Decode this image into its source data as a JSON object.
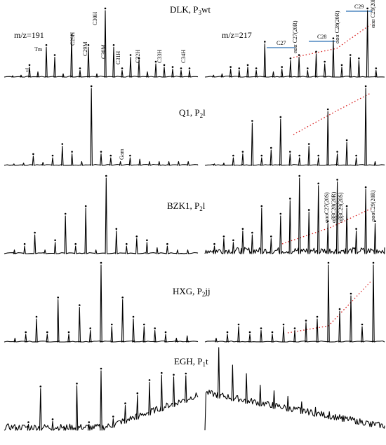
{
  "chart_data": [
    {
      "type": "line",
      "title": "DLK, P3wt",
      "title_main": "DLK, P",
      "title_sub": "3",
      "title_suffix": "wt",
      "mz_left": "m/z=191",
      "mz_right": "m/z=217",
      "left_labels": [
        {
          "text": "Ts"
        },
        {
          "text": "Tm"
        },
        {
          "text": "C29H"
        },
        {
          "text": "C29M"
        },
        {
          "text": "C30H"
        },
        {
          "text": "C30M"
        },
        {
          "text": "C31H"
        },
        {
          "text": "C32H"
        },
        {
          "text": "C33H"
        },
        {
          "text": "C34H"
        }
      ],
      "right_labels": [
        {
          "text": "ααα C27(20R)"
        },
        {
          "text": "ααα C28(20R)"
        },
        {
          "text": "ααα C29(20R)"
        }
      ],
      "brackets": [
        {
          "text": "C27"
        },
        {
          "text": "C28"
        },
        {
          "text": "C29"
        }
      ],
      "series": [
        {
          "values": [
            0.02,
            0.03,
            0.15,
            0.08,
            0.45,
            0.3,
            0.05,
            0.6,
            0.1,
            0.45,
            0.05,
            1.0,
            0.45,
            0.1,
            0.3,
            0.25,
            0.08,
            0.2,
            0.15,
            0.12,
            0.1,
            0.1
          ]
        },
        {
          "values": [
            0.03,
            0.05,
            0.12,
            0.1,
            0.15,
            0.1,
            0.5,
            0.08,
            0.12,
            0.25,
            0.3,
            0.1,
            0.35,
            0.2,
            0.55,
            0.15,
            0.3,
            0.25,
            1.0,
            0.1
          ]
        }
      ]
    },
    {
      "type": "line",
      "title": "Q1, P2l",
      "title_main": "Q1, P",
      "title_sub": "2",
      "title_suffix": "l",
      "left_labels": [
        {
          "text": "Gam"
        }
      ],
      "series": [
        {
          "values": [
            0.02,
            0.03,
            0.12,
            0.04,
            0.1,
            0.25,
            0.15,
            0.05,
            1.0,
            0.15,
            0.1,
            0.05,
            0.1,
            0.08,
            0.05,
            0.05,
            0.05,
            0.05,
            0.05
          ]
        },
        {
          "values": [
            0.02,
            0.03,
            0.1,
            0.15,
            0.55,
            0.1,
            0.2,
            0.6,
            0.15,
            0.1,
            0.25,
            0.1,
            0.7,
            0.15,
            0.3,
            0.1,
            1.0,
            0.05
          ]
        }
      ]
    },
    {
      "type": "line",
      "title": "BZK1, P2l",
      "title_main": "BZK1, P",
      "title_sub": "2",
      "title_suffix": "l",
      "right_labels": [
        {
          "text": "αααC27(20S)"
        },
        {
          "text": "αββC28(20R)"
        },
        {
          "text": "αββC29(20S)"
        },
        {
          "text": "αααC29(20R)"
        }
      ],
      "series": [
        {
          "values": [
            0.05,
            0.1,
            0.25,
            0.05,
            0.15,
            0.5,
            0.1,
            0.6,
            0.05,
            1.0,
            0.3,
            0.1,
            0.2,
            0.15,
            0.08,
            0.1,
            0.05,
            0.05
          ]
        },
        {
          "values": [
            0.1,
            0.2,
            0.15,
            0.3,
            0.25,
            0.6,
            0.2,
            0.5,
            0.7,
            1.0,
            0.55,
            0.9,
            0.4,
            0.95,
            0.6,
            0.3,
            0.85,
            0.4
          ]
        }
      ]
    },
    {
      "type": "line",
      "title": "HXG, P2jj",
      "title_main": "HXG, P",
      "title_sub": "2",
      "title_suffix": "jj",
      "series": [
        {
          "values": [
            0.05,
            0.1,
            0.3,
            0.1,
            0.55,
            0.1,
            0.45,
            0.15,
            1.0,
            0.2,
            0.55,
            0.3,
            0.2,
            0.15,
            0.1,
            0.05,
            0.08
          ]
        },
        {
          "values": [
            0.05,
            0.1,
            0.2,
            0.1,
            0.15,
            0.1,
            0.2,
            0.15,
            0.25,
            0.3,
            1.0,
            0.4,
            0.6,
            0.2,
            1.0
          ]
        }
      ]
    },
    {
      "type": "line",
      "title": "EGH, P1t",
      "title_main": "EGH, P",
      "title_sub": "1",
      "title_suffix": "t",
      "series": [
        {
          "values": [
            0.05,
            0.1,
            0.7,
            0.15,
            0.05,
            0.75,
            0.1,
            1.0,
            0.15,
            0.3,
            0.4,
            0.55,
            0.6,
            0.5,
            0.45
          ]
        },
        {
          "values": [
            0.85,
            0.6,
            0.5,
            0.35,
            0.3,
            0.25,
            0.2,
            0.15,
            0.12,
            0.1,
            0.08,
            0.08
          ]
        }
      ]
    }
  ],
  "colors": {
    "trace": "#000000",
    "trend": "#d81b1b",
    "bracket": "#2a6fb3",
    "dot": "#000000"
  }
}
